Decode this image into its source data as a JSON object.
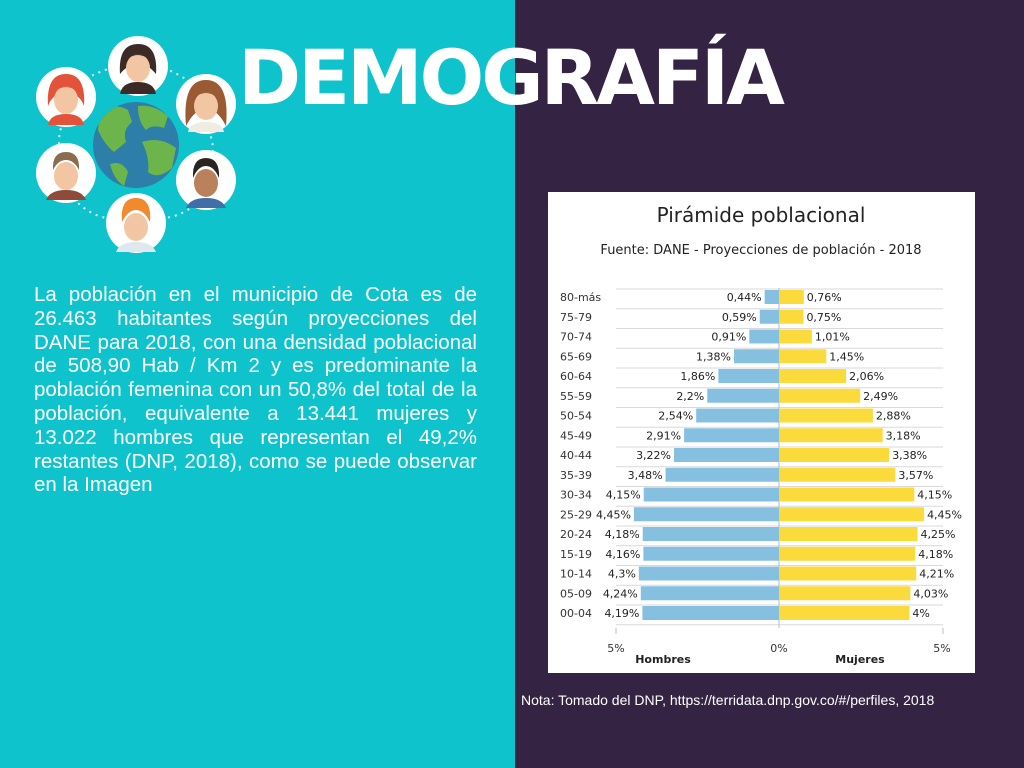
{
  "header": {
    "title": "DEMOGRAFÍA"
  },
  "illustration": {
    "icons": [
      "globe-icon",
      "woman-avatar-icon",
      "man-avatar-icon"
    ]
  },
  "text": {
    "body": "La población en el municipio de Cota es de 26.463 habitantes según proyecciones del DANE para 2018, con una densidad poblacional de 508,90 Hab / Km 2 y es predominante la población femenina con un 50,8% del total de la población, equivalente a 13.441 mujeres y 13.022 hombres que representan el 49,2% restantes (DNP, 2018), como se puede observar en la Imagen",
    "note": "Nota: Tomado del DNP, https://terridata.dnp.gov.co/#/perfiles, 2018"
  },
  "colors": {
    "left_bg": "#0fc3cc",
    "right_bg": "#352343",
    "men": "#85c0e0",
    "women": "#fbdb3c"
  },
  "chart_data": {
    "type": "bar",
    "orientation": "horizontal-pyramid",
    "title": "Pirámide poblacional",
    "subtitle": "Fuente: DANE - Proyecciones de población - 2018",
    "categories": [
      "80-más",
      "75-79",
      "70-74",
      "65-69",
      "60-64",
      "55-59",
      "50-54",
      "45-49",
      "40-44",
      "35-39",
      "30-34",
      "25-29",
      "20-24",
      "15-19",
      "10-14",
      "05-09",
      "00-04"
    ],
    "series": [
      {
        "name": "Hombres",
        "values": [
          0.44,
          0.59,
          0.91,
          1.38,
          1.86,
          2.2,
          2.54,
          2.91,
          3.22,
          3.48,
          4.15,
          4.45,
          4.18,
          4.16,
          4.3,
          4.24,
          4.19
        ],
        "labels": [
          "0,44%",
          "0,59%",
          "0,91%",
          "1,38%",
          "1,86%",
          "2,2%",
          "2,54%",
          "2,91%",
          "3,22%",
          "3,48%",
          "4,15%",
          "4,45%",
          "4,18%",
          "4,16%",
          "4,3%",
          "4,24%",
          "4,19%"
        ]
      },
      {
        "name": "Mujeres",
        "values": [
          0.76,
          0.75,
          1.01,
          1.45,
          2.06,
          2.49,
          2.88,
          3.18,
          3.38,
          3.57,
          4.15,
          4.45,
          4.25,
          4.18,
          4.21,
          4.03,
          4
        ],
        "labels": [
          "0,76%",
          "0,75%",
          "1,01%",
          "1,45%",
          "2,06%",
          "2,49%",
          "2,88%",
          "3,18%",
          "3,38%",
          "3,57%",
          "4,15%",
          "4,45%",
          "4,25%",
          "4,18%",
          "4,21%",
          "4,03%",
          "4%"
        ]
      }
    ],
    "xlim": [
      -5,
      5
    ],
    "xticks": [
      "5%",
      "0%",
      "5%"
    ],
    "grid": true,
    "legend": "bottom"
  }
}
